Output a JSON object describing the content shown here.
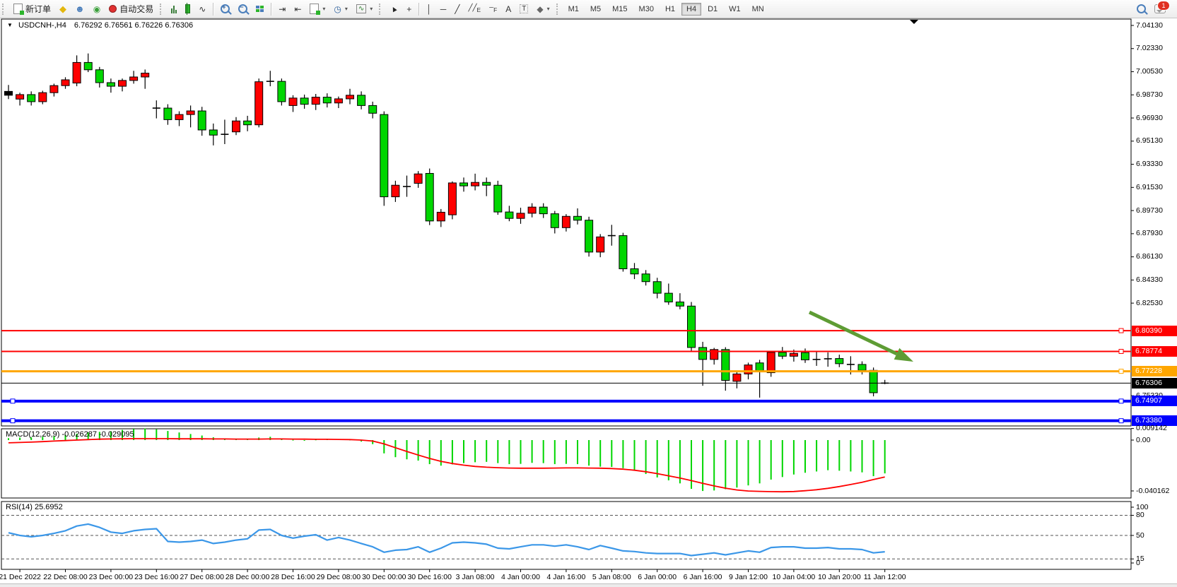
{
  "toolbar": {
    "new_order_label": "新订单",
    "autotrade_label": "自动交易",
    "dropdown_glyph": "▾",
    "timeframes": [
      {
        "label": "M1",
        "active": false
      },
      {
        "label": "M5",
        "active": false
      },
      {
        "label": "M15",
        "active": false
      },
      {
        "label": "M30",
        "active": false
      },
      {
        "label": "H1",
        "active": false
      },
      {
        "label": "H4",
        "active": true
      },
      {
        "label": "D1",
        "active": false
      },
      {
        "label": "W1",
        "active": false
      },
      {
        "label": "MN",
        "active": false
      }
    ],
    "notification_badge": "1"
  },
  "chart": {
    "collapse_glyph": "▼",
    "title": "USDCNH-,H4",
    "ohlc_text": "6.76292 6.76561 6.76226 6.76306",
    "price_axis_ticks": [
      "7.04130",
      "7.02330",
      "7.00530",
      "6.98730",
      "6.96930",
      "6.95130",
      "6.93330",
      "6.91530",
      "6.89730",
      "6.87930",
      "6.86130",
      "6.84330",
      "6.82530",
      "6.75330"
    ],
    "time_axis_labels": [
      "21 Dec 2022",
      "22 Dec 08:00",
      "23 Dec 00:00",
      "23 Dec 16:00",
      "27 Dec 08:00",
      "28 Dec 00:00",
      "28 Dec 16:00",
      "29 Dec 08:00",
      "30 Dec 00:00",
      "30 Dec 16:00",
      "3 Jan 08:00",
      "4 Jan 00:00",
      "4 Jan 16:00",
      "5 Jan 08:00",
      "6 Jan 00:00",
      "6 Jan 16:00",
      "9 Jan 12:00",
      "10 Jan 04:00",
      "10 Jan 20:00",
      "11 Jan 12:00"
    ],
    "price_lines": [
      {
        "value": 6.8039,
        "label": "6.80390",
        "color": "#FF0000",
        "thickness": 2,
        "handles": "right"
      },
      {
        "value": 6.78774,
        "label": "6.78774",
        "color": "#FF0000",
        "thickness": 2,
        "handles": "right"
      },
      {
        "value": 6.77228,
        "label": "6.77228",
        "color": "#FFA600",
        "thickness": 3,
        "handles": "right"
      },
      {
        "value": 6.76306,
        "label": "6.76306",
        "color": "#000000",
        "thickness": 1,
        "handles": "none"
      },
      {
        "value": 6.74907,
        "label": "6.74907",
        "color": "#0000FF",
        "thickness": 4,
        "handles": "both"
      },
      {
        "value": 6.7338,
        "label": "6.73380",
        "color": "#0000FF",
        "thickness": 4,
        "handles": "both"
      }
    ],
    "macd_label": "MACD(12,26,9) -0.026287 -0.029095",
    "macd_axis": {
      "max": "0.009142",
      "zero": "0.00",
      "min": "-0.040162"
    },
    "rsi_label": "RSI(14) 25.6952",
    "rsi_axis_labels": [
      "100",
      "80",
      "50",
      "15",
      "0"
    ]
  },
  "chart_data": {
    "type": "candlestick",
    "symbol": "USDCNH-",
    "timeframe": "H4",
    "up_color": "#FF0000",
    "down_color": "#00D600",
    "current_bar": {
      "open": 6.76292,
      "high": 6.76561,
      "low": 6.76226,
      "close": 6.76306
    },
    "ylim": [
      6.7298,
      7.0462
    ],
    "candles": [
      [
        6.99,
        6.995,
        6.984,
        6.987
      ],
      [
        6.984,
        6.989,
        6.979,
        6.9875
      ],
      [
        6.9875,
        6.99,
        6.979,
        6.982
      ],
      [
        6.982,
        6.9905,
        6.98,
        6.989
      ],
      [
        6.989,
        6.996,
        6.986,
        6.9945
      ],
      [
        6.9945,
        7.001,
        6.992,
        6.999
      ],
      [
        6.9965,
        7.018,
        6.994,
        7.0125
      ],
      [
        7.0125,
        7.0195,
        7.005,
        7.0068
      ],
      [
        7.0068,
        7.009,
        6.993,
        6.9968
      ],
      [
        6.9968,
        7.0,
        6.989,
        6.994
      ],
      [
        6.994,
        7.0,
        6.99,
        6.9985
      ],
      [
        6.9985,
        7.006,
        6.996,
        7.0012
      ],
      [
        7.0012,
        7.007,
        6.992,
        7.0042
      ],
      [
        6.978,
        6.983,
        6.969,
        6.977
      ],
      [
        6.977,
        6.98,
        6.964,
        6.968
      ],
      [
        6.968,
        6.9745,
        6.963,
        6.972
      ],
      [
        6.972,
        6.979,
        6.962,
        6.9748
      ],
      [
        6.9748,
        6.978,
        6.9555,
        6.96
      ],
      [
        6.96,
        6.965,
        6.948,
        6.956
      ],
      [
        6.956,
        6.968,
        6.949,
        6.9566
      ],
      [
        6.9585,
        6.97,
        6.956,
        6.967
      ],
      [
        6.967,
        6.971,
        6.959,
        6.964
      ],
      [
        6.964,
        7.0,
        6.962,
        6.9975
      ],
      [
        6.999,
        7.006,
        6.994,
        6.9978
      ],
      [
        6.9978,
        7.0,
        6.979,
        6.982
      ],
      [
        6.979,
        6.987,
        6.974,
        6.9848
      ],
      [
        6.9848,
        6.9875,
        6.9765,
        6.98
      ],
      [
        6.98,
        6.988,
        6.9755,
        6.9855
      ],
      [
        6.9855,
        6.9885,
        6.9775,
        6.981
      ],
      [
        6.981,
        6.986,
        6.977,
        6.9842
      ],
      [
        6.9842,
        6.992,
        6.98,
        6.987
      ],
      [
        6.987,
        6.99,
        6.976,
        6.979
      ],
      [
        6.979,
        6.982,
        6.969,
        6.973
      ],
      [
        6.972,
        6.9745,
        6.901,
        6.908
      ],
      [
        6.908,
        6.9205,
        6.904,
        6.917
      ],
      [
        6.917,
        6.9245,
        6.908,
        6.916
      ],
      [
        6.9185,
        6.928,
        6.915,
        6.9258
      ],
      [
        6.9262,
        6.93,
        6.886,
        6.8892
      ],
      [
        6.8892,
        6.8985,
        6.8845,
        6.896
      ],
      [
        6.894,
        6.92,
        6.8905,
        6.9188
      ],
      [
        6.9188,
        6.923,
        6.912,
        6.9165
      ],
      [
        6.9165,
        6.926,
        6.913,
        6.9192
      ],
      [
        6.9192,
        6.923,
        6.9085,
        6.917
      ],
      [
        6.917,
        6.9205,
        6.894,
        6.8962
      ],
      [
        6.8962,
        6.901,
        6.889,
        6.8912
      ],
      [
        6.8912,
        6.8995,
        6.887,
        6.8952
      ],
      [
        6.8952,
        6.903,
        6.892,
        6.9
      ],
      [
        6.9,
        6.903,
        6.8915,
        6.8948
      ],
      [
        6.8948,
        6.897,
        6.8795,
        6.884
      ],
      [
        6.884,
        6.8945,
        6.881,
        6.8928
      ],
      [
        6.8928,
        6.899,
        6.8865,
        6.8898
      ],
      [
        6.8898,
        6.8925,
        6.8615,
        6.865
      ],
      [
        6.865,
        6.879,
        6.861,
        6.8768
      ],
      [
        6.8768,
        6.8862,
        6.87,
        6.8778
      ],
      [
        6.8778,
        6.88,
        6.8498,
        6.852
      ],
      [
        6.852,
        6.8565,
        6.844,
        6.848
      ],
      [
        6.848,
        6.851,
        6.839,
        6.842
      ],
      [
        6.842,
        6.845,
        6.829,
        6.833
      ],
      [
        6.833,
        6.8405,
        6.824,
        6.8262
      ],
      [
        6.8262,
        6.833,
        6.8205,
        6.823
      ],
      [
        6.823,
        6.8262,
        6.788,
        6.7908
      ],
      [
        6.7908,
        6.7952,
        6.761,
        6.7815
      ],
      [
        6.7815,
        6.7905,
        6.7775,
        6.7892
      ],
      [
        6.7892,
        6.791,
        6.7572,
        6.7652
      ],
      [
        6.7645,
        6.7722,
        6.759,
        6.7702
      ],
      [
        6.7702,
        6.779,
        6.766,
        6.7772
      ],
      [
        6.7788,
        6.7812,
        6.7518,
        6.7728
      ],
      [
        6.7712,
        6.7882,
        6.768,
        6.787
      ],
      [
        6.787,
        6.7912,
        6.7818,
        6.784
      ],
      [
        6.784,
        6.7892,
        6.7798,
        6.7862
      ],
      [
        6.7868,
        6.79,
        6.7788,
        6.7812
      ],
      [
        6.7818,
        6.7872,
        6.7765,
        6.7815
      ],
      [
        6.7815,
        6.787,
        6.7758,
        6.782
      ],
      [
        6.7822,
        6.7852,
        6.7755,
        6.7782
      ],
      [
        6.7782,
        6.784,
        6.7698,
        6.7776
      ],
      [
        6.7776,
        6.78,
        6.7698,
        6.773
      ],
      [
        6.773,
        6.7752,
        6.7528,
        6.7556
      ],
      [
        6.76292,
        6.76561,
        6.76226,
        6.76306
      ]
    ],
    "macd": {
      "histogram": [
        0.0015,
        0.002,
        0.0022,
        0.0026,
        0.003,
        0.004,
        0.005,
        0.006,
        0.0065,
        0.007,
        0.008,
        0.0088,
        0.0091,
        0.0085,
        0.0072,
        0.006,
        0.0048,
        0.0036,
        0.0022,
        0.001,
        0.0006,
        0.001,
        0.002,
        0.0026,
        0.0012,
        0.0002,
        -0.0006,
        0.0004,
        0.001,
        0.0008,
        0.0004,
        -0.0012,
        -0.0032,
        -0.0105,
        -0.0135,
        -0.0152,
        -0.0162,
        -0.019,
        -0.0202,
        -0.0192,
        -0.0182,
        -0.0175,
        -0.0172,
        -0.0182,
        -0.019,
        -0.0188,
        -0.018,
        -0.0182,
        -0.019,
        -0.0188,
        -0.019,
        -0.0202,
        -0.021,
        -0.0212,
        -0.0222,
        -0.0238,
        -0.0268,
        -0.0295,
        -0.0318,
        -0.0342,
        -0.0385,
        -0.0402,
        -0.0398,
        -0.0388,
        -0.0375,
        -0.0358,
        -0.0342,
        -0.0312,
        -0.0292,
        -0.0272,
        -0.0258,
        -0.0248,
        -0.0238,
        -0.0242,
        -0.0248,
        -0.0255,
        -0.0285,
        -0.0263
      ],
      "signal": [
        -0.0022,
        -0.0019,
        -0.0016,
        -0.0012,
        -0.0008,
        -0.0004,
        0.0,
        0.0004,
        0.0007,
        0.0009,
        0.001,
        0.0011,
        0.0011,
        0.0011,
        0.0011,
        0.001,
        0.001,
        0.001,
        0.0009,
        0.0009,
        0.0008,
        0.0008,
        0.0008,
        0.0009,
        0.0009,
        0.0008,
        0.0007,
        0.0006,
        0.0006,
        0.0005,
        0.0004,
        0.0,
        -0.0008,
        -0.003,
        -0.006,
        -0.009,
        -0.0118,
        -0.0145,
        -0.0168,
        -0.0185,
        -0.0198,
        -0.0208,
        -0.0214,
        -0.0218,
        -0.0221,
        -0.0222,
        -0.0222,
        -0.0222,
        -0.0221,
        -0.022,
        -0.022,
        -0.0221,
        -0.0222,
        -0.0225,
        -0.023,
        -0.0238,
        -0.025,
        -0.0265,
        -0.0282,
        -0.03,
        -0.032,
        -0.0342,
        -0.0362,
        -0.038,
        -0.0394,
        -0.0402,
        -0.0405,
        -0.0407,
        -0.0408,
        -0.0406,
        -0.04,
        -0.0392,
        -0.0381,
        -0.0367,
        -0.0351,
        -0.0333,
        -0.0312,
        -0.0291
      ],
      "current_macd": -0.026287,
      "current_signal": -0.029095
    },
    "rsi": {
      "period": 14,
      "current": 25.6952,
      "levels": [
        80,
        50,
        15
      ],
      "values": [
        54,
        50,
        48,
        50,
        53,
        57,
        64,
        67,
        62,
        55,
        53,
        57,
        59,
        60,
        41,
        40,
        41,
        43,
        38,
        40,
        43,
        45,
        58,
        59,
        50,
        46,
        49,
        51,
        43,
        47,
        43,
        38,
        33,
        25,
        28,
        29,
        33,
        25,
        31,
        39,
        40,
        39,
        37,
        31,
        30,
        33,
        36,
        36,
        34,
        36,
        33,
        29,
        35,
        31,
        27,
        26,
        24,
        23,
        23,
        23,
        20,
        22,
        24,
        21,
        24,
        27,
        25,
        32,
        33,
        33,
        31,
        31,
        32,
        30,
        30,
        29,
        24,
        25.7
      ]
    },
    "annotation": {
      "type": "arrow",
      "color": "#5E9C34",
      "from": [
        1145,
        442
      ],
      "to": [
        1292,
        512
      ]
    }
  }
}
